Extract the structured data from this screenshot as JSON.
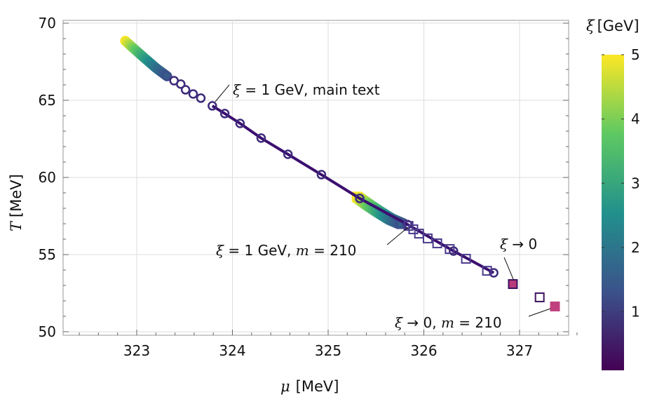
{
  "chart_data": {
    "type": "scatter",
    "xlabel_symbol": "μ",
    "xlabel_unit": "[MeV]",
    "ylabel_symbol": "T",
    "ylabel_unit": "[MeV]",
    "xlim": [
      322.3,
      327.6
    ],
    "ylim": [
      49.8,
      70.3
    ],
    "xticks": [
      323,
      324,
      325,
      326,
      327
    ],
    "yticks": [
      50,
      55,
      60,
      65,
      70
    ],
    "grid": true,
    "colorbar": {
      "label_symbol": "ξ",
      "label_unit": "[GeV]",
      "range": [
        0.1,
        5
      ],
      "ticks": [
        1,
        2,
        3,
        4,
        5
      ],
      "colormap": "viridis"
    },
    "series": [
      {
        "marker": "circle",
        "color": "#3d2a7a",
        "tail": [
          [
            322.88,
            68.85,
            5
          ],
          [
            322.97,
            68.35,
            4
          ],
          [
            323.07,
            67.8,
            3
          ],
          [
            323.2,
            67.1,
            2
          ],
          [
            323.33,
            66.5,
            1.2
          ]
        ],
        "points": [
          [
            323.39,
            66.27
          ],
          [
            323.46,
            66.05
          ],
          [
            323.51,
            65.68
          ],
          [
            323.59,
            65.41
          ],
          [
            323.67,
            65.14
          ],
          [
            323.79,
            64.64
          ],
          [
            323.92,
            64.14
          ],
          [
            324.08,
            63.5
          ],
          [
            324.3,
            62.55
          ],
          [
            324.58,
            61.5
          ],
          [
            324.93,
            60.18
          ],
          [
            325.33,
            58.64
          ],
          [
            325.83,
            56.95
          ],
          [
            326.31,
            55.23
          ],
          [
            326.73,
            53.82
          ]
        ]
      },
      {
        "marker": "square",
        "color": "#4a3a8c",
        "tail": [
          [
            325.3,
            58.75,
            5
          ],
          [
            325.4,
            58.3,
            4
          ],
          [
            325.52,
            57.8,
            3
          ],
          [
            325.65,
            57.3,
            2
          ],
          [
            325.78,
            56.95,
            1.2
          ]
        ],
        "points": [
          [
            325.84,
            56.86
          ],
          [
            325.89,
            56.64
          ],
          [
            325.95,
            56.36
          ],
          [
            326.04,
            56.05
          ],
          [
            326.14,
            55.73
          ],
          [
            326.27,
            55.36
          ],
          [
            326.44,
            54.73
          ],
          [
            326.66,
            53.95
          ]
        ]
      }
    ],
    "special_points": [
      {
        "mu": 326.93,
        "T": 53.09,
        "style": "filled-bordered",
        "fill": "#b93a7a",
        "stroke": "#3d1260"
      },
      {
        "mu": 327.21,
        "T": 52.23,
        "style": "open",
        "stroke": "#3d1260"
      },
      {
        "mu": 327.37,
        "T": 51.64,
        "style": "filled",
        "fill": "#c0407f"
      }
    ],
    "annotations": [
      {
        "sym": "ξ",
        "rest": " = 1 GeV, main text"
      },
      {
        "sym": "ξ",
        "rest": " = 1 GeV, ",
        "m": "m",
        "rest2": " = 210"
      },
      {
        "sym": "ξ",
        "rest": " → 0"
      },
      {
        "sym": "ξ",
        "rest": " → 0, ",
        "m": "m",
        "rest2": " = 210"
      }
    ]
  }
}
